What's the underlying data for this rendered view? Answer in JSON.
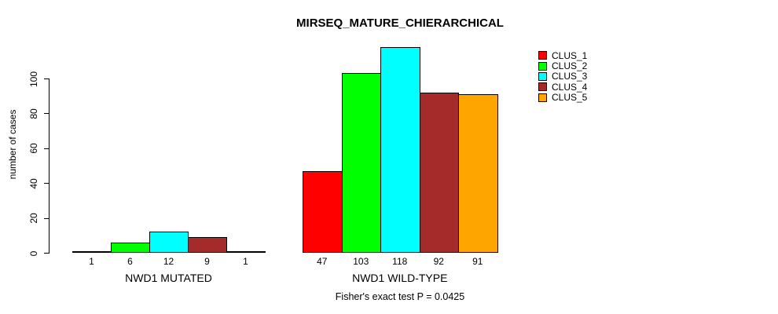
{
  "chart_data": {
    "type": "bar",
    "title": "MIRSEQ_MATURE_CHIERARCHICAL",
    "ylabel": "number of cases",
    "xlabel": "",
    "ylim": [
      0,
      120
    ],
    "yticks": [
      0,
      20,
      40,
      60,
      80,
      100
    ],
    "grid": false,
    "legend_position": "right",
    "categories": [
      "NWD1 MUTATED",
      "NWD1 WILD-TYPE"
    ],
    "groups": [
      {
        "label": "NWD1 MUTATED",
        "values": [
          1,
          6,
          12,
          9,
          1
        ]
      },
      {
        "label": "NWD1 WILD-TYPE",
        "values": [
          47,
          103,
          118,
          92,
          91
        ]
      }
    ],
    "series": [
      {
        "name": "CLUS_1",
        "color": "#FF0000",
        "values": [
          1,
          47
        ]
      },
      {
        "name": "CLUS_2",
        "color": "#00FF00",
        "values": [
          6,
          103
        ]
      },
      {
        "name": "CLUS_3",
        "color": "#00FFFF",
        "values": [
          12,
          118
        ]
      },
      {
        "name": "CLUS_4",
        "color": "#A52A2A",
        "values": [
          9,
          92
        ]
      },
      {
        "name": "CLUS_5",
        "color": "#FFA500",
        "values": [
          1,
          91
        ]
      }
    ],
    "legend": [
      {
        "label": "CLUS_1",
        "color": "#FF0000"
      },
      {
        "label": "CLUS_2",
        "color": "#00FF00"
      },
      {
        "label": "CLUS_3",
        "color": "#00FFFF"
      },
      {
        "label": "CLUS_4",
        "color": "#A52A2A"
      },
      {
        "label": "CLUS_5",
        "color": "#FFA500"
      }
    ],
    "annotation": "Fisher's exact test P = 0.0425"
  }
}
